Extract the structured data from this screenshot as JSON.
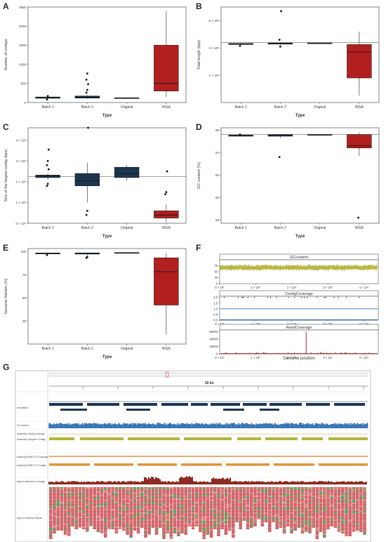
{
  "panels": {
    "A": {
      "letter": "A",
      "chart_data": {
        "type": "box",
        "xlabel": "Type",
        "ylabel": "Number of contigs",
        "categories": [
          "Batch 1",
          "Batch 2",
          "Original",
          "WGA"
        ],
        "ylim": [
          0,
          2500
        ],
        "yticks": [
          0,
          500,
          1000,
          1500,
          2000,
          2500
        ],
        "ytick_labels": [
          "0",
          "500",
          "1000",
          "1500",
          "2000",
          "2500"
        ],
        "boxes": [
          {
            "q1": 110,
            "median": 125,
            "q3": 145,
            "whislo": 100,
            "whishi": 160,
            "outliers": [
              80,
              170
            ],
            "color": "#1c3650"
          },
          {
            "q1": 115,
            "median": 140,
            "q3": 170,
            "whislo": 100,
            "whishi": 190,
            "outliers": [
              260,
              330,
              480,
              600,
              760
            ],
            "color": "#1c3650"
          },
          {
            "q1": 115,
            "median": 120,
            "q3": 125,
            "whislo": 110,
            "whishi": 130,
            "outliers": [],
            "color": "#1c3650"
          },
          {
            "q1": 300,
            "median": 500,
            "q3": 1500,
            "whislo": 150,
            "whishi": 2400,
            "outliers": [],
            "color": "#b21f1f"
          }
        ]
      }
    },
    "B": {
      "letter": "B",
      "chart_data": {
        "type": "box",
        "xlabel": "Type",
        "ylabel": "Total length (bps)",
        "categories": [
          "Batch 1",
          "Batch 2",
          "Original",
          "WGA"
        ],
        "ylim": [
          0,
          7000000
        ],
        "yticks": [
          2000000,
          4000000,
          6000000
        ],
        "ytick_labels": [
          "2 × 10⁶",
          "4 × 10⁶",
          "6 × 10⁶"
        ],
        "hline": 4400000,
        "boxes": [
          {
            "q1": 4250000,
            "median": 4300000,
            "q3": 4330000,
            "whislo": 4200000,
            "whishi": 4360000,
            "outliers": [
              4150000
            ],
            "color": "#1c3650"
          },
          {
            "q1": 4280000,
            "median": 4320000,
            "q3": 4360000,
            "whislo": 4200000,
            "whishi": 4400000,
            "outliers": [
              4600000,
              4100000,
              6700000
            ],
            "color": "#1c3650"
          },
          {
            "q1": 4320000,
            "median": 4350000,
            "q3": 4370000,
            "whislo": 4300000,
            "whishi": 4400000,
            "outliers": [],
            "color": "#1c3650"
          },
          {
            "q1": 1800000,
            "median": 3700000,
            "q3": 4250000,
            "whislo": 500000,
            "whishi": 5200000,
            "outliers": [],
            "color": "#b21f1f"
          }
        ]
      }
    },
    "C": {
      "letter": "C",
      "chart_data": {
        "type": "box",
        "xlabel": "Type",
        "ylabel": "Size of the largest contig (bps)",
        "categories": [
          "Batch 1",
          "Batch 2",
          "Original",
          "WGA"
        ],
        "ylim": [
          0,
          4600000
        ],
        "yticks": [
          0,
          1000000,
          2000000,
          3000000,
          4000000
        ],
        "ytick_labels": [
          "0 × 10⁰",
          "1 × 10⁶",
          "2 × 10⁶",
          "3 × 10⁶",
          "4 × 10⁶"
        ],
        "hline": 2250000,
        "boxes": [
          {
            "q1": 2200000,
            "median": 2280000,
            "q3": 2320000,
            "whislo": 2100000,
            "whishi": 2400000,
            "outliers": [
              1800000,
              1900000,
              2600000,
              2800000,
              3000000,
              3550000
            ],
            "color": "#1c3650"
          },
          {
            "q1": 1800000,
            "median": 2050000,
            "q3": 2400000,
            "whislo": 1000000,
            "whishi": 2900000,
            "outliers": [
              400000,
              600000,
              4600000
            ],
            "color": "#1c3650"
          },
          {
            "q1": 2200000,
            "median": 2400000,
            "q3": 2700000,
            "whislo": 2050000,
            "whishi": 2800000,
            "outliers": [],
            "color": "#1c3650"
          },
          {
            "q1": 250000,
            "median": 400000,
            "q3": 600000,
            "whislo": 50000,
            "whishi": 900000,
            "outliers": [
              1400000,
              1500000,
              2500000
            ],
            "color": "#b21f1f"
          }
        ]
      }
    },
    "D": {
      "letter": "D",
      "chart_data": {
        "type": "box",
        "xlabel": "Type",
        "ylabel": "GC content (%)",
        "categories": [
          "Batch 1",
          "Batch 2",
          "Original",
          "WGA"
        ],
        "ylim": [
          57.7,
          66.2
        ],
        "yticks": [
          58,
          60,
          62,
          64,
          66
        ],
        "ytick_labels": [
          "58",
          "60",
          "62",
          "64",
          "66"
        ],
        "hline": 65.6,
        "boxes": [
          {
            "q1": 65.45,
            "median": 65.5,
            "q3": 65.55,
            "whislo": 65.4,
            "whishi": 65.6,
            "outliers": [
              65.6
            ],
            "color": "#1c3650"
          },
          {
            "q1": 65.45,
            "median": 65.5,
            "q3": 65.6,
            "whislo": 65.3,
            "whishi": 65.65,
            "outliers": [
              63.6
            ],
            "color": "#1c3650"
          },
          {
            "q1": 65.55,
            "median": 65.58,
            "q3": 65.6,
            "whislo": 65.5,
            "whishi": 65.62,
            "outliers": [],
            "color": "#1c3650"
          },
          {
            "q1": 64.4,
            "median": 64.6,
            "q3": 65.6,
            "whislo": 63.7,
            "whishi": 65.8,
            "outliers": [
              58.2
            ],
            "color": "#b21f1f"
          }
        ]
      }
    },
    "E": {
      "letter": "E",
      "chart_data": {
        "type": "box",
        "xlabel": "Type",
        "ylabel": "Genome fraction (%)",
        "categories": [
          "Batch 1",
          "Batch 2",
          "Original",
          "WGA"
        ],
        "ylim": [
          0,
          103
        ],
        "yticks": [
          25,
          50,
          75,
          100
        ],
        "ytick_labels": [
          "25",
          "50",
          "75",
          "100"
        ],
        "boxes": [
          {
            "q1": 97.2,
            "median": 97.8,
            "q3": 98.2,
            "whislo": 96.5,
            "whishi": 98.6,
            "outliers": [
              96.0
            ],
            "color": "#1c3650"
          },
          {
            "q1": 97.0,
            "median": 97.6,
            "q3": 98.3,
            "whislo": 95.5,
            "whishi": 98.6,
            "outliers": [
              93.0,
              94.0
            ],
            "color": "#1c3650"
          },
          {
            "q1": 98.3,
            "median": 98.5,
            "q3": 98.7,
            "whislo": 98.2,
            "whishi": 98.8,
            "outliers": [],
            "color": "#1c3650"
          },
          {
            "q1": 42,
            "median": 78,
            "q3": 93,
            "whislo": 10,
            "whishi": 98,
            "outliers": [],
            "color": "#b21f1f"
          }
        ]
      }
    },
    "F": {
      "letter": "F",
      "xlabel": "Genome position",
      "xticks": [
        0,
        1000000,
        2000000,
        3000000,
        4000000
      ],
      "xtick_labels": [
        "0 × 10⁰",
        "1 × 10⁶",
        "2 × 10⁶",
        "3 × 10⁶",
        "4 × 10⁶"
      ],
      "xlim": [
        0,
        4400000
      ],
      "facets": [
        {
          "strip": "GCcontent",
          "ylim": [
            0,
            100
          ],
          "yticks": [
            0,
            25,
            50,
            75
          ],
          "ytick_labels": [
            "0",
            "25",
            "50",
            "75"
          ],
          "color": "#b8b33a",
          "kind": "gc"
        },
        {
          "strip": "ContigCoverage",
          "ylim": [
            0,
            2.1
          ],
          "yticks": [
            0,
            0.5,
            1.0,
            1.5,
            2.0
          ],
          "ytick_labels": [
            "0.0",
            "0.5",
            "1.0",
            "1.5",
            "2.0"
          ],
          "color": "#2f6fb0",
          "kind": "contig"
        },
        {
          "strip": "ReadCoverage",
          "ylim": [
            0,
            65000
          ],
          "yticks": [
            0,
            20000,
            40000,
            60000
          ],
          "ytick_labels": [
            "0",
            "20000",
            "40000",
            "60000"
          ],
          "color": "#8b1a1a",
          "kind": "read"
        }
      ]
    },
    "G": {
      "letter": "G",
      "scale_label": "18 kb",
      "track_labels": [
        "Annotation",
        "GC content",
        "Assembly Contig Coverage",
        "Assembly Unicycler Contigs",
        "Assembly SMRT-LR Coverage",
        "Assembly SMRT-LR Contigs",
        "Map to reference Coverage",
        "Map to reference Reads"
      ]
    }
  }
}
